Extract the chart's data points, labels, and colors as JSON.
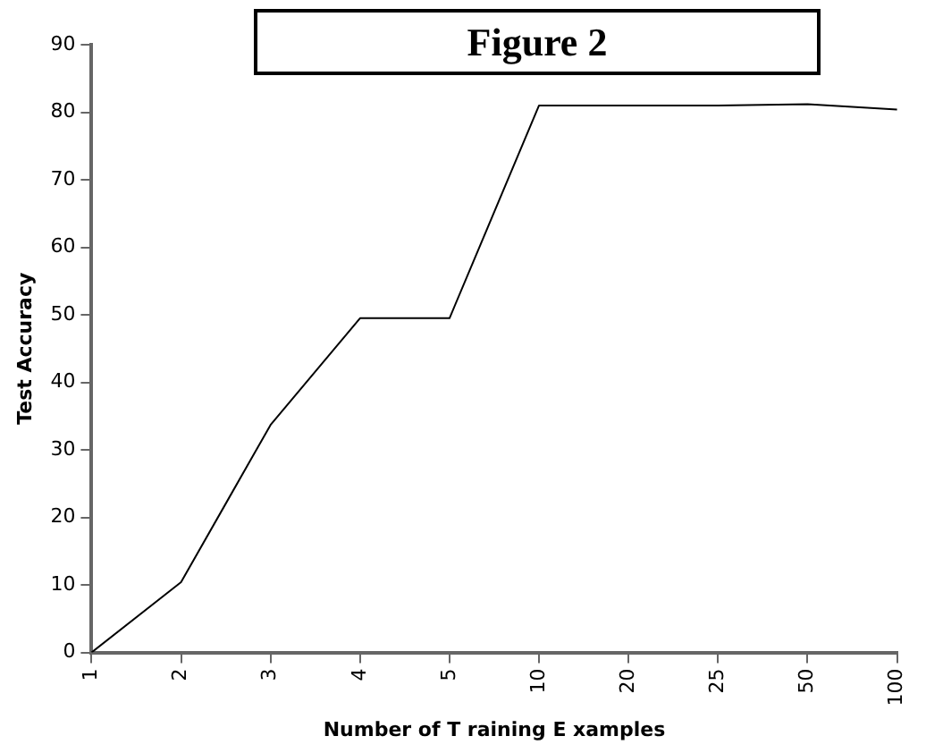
{
  "chart_data": {
    "type": "line",
    "title": "Figure 2",
    "xlabel": "Number of T raining E xamples",
    "ylabel": "Test Accuracy",
    "categories": [
      "1",
      "2",
      "3",
      "4",
      "5",
      "10",
      "20",
      "25",
      "50",
      "100"
    ],
    "series": [
      {
        "color": "#000000",
        "values": [
          0,
          10.4,
          33.7,
          49.5,
          49.5,
          81,
          81,
          81,
          81.2,
          80.4
        ]
      }
    ],
    "ylim": [
      0,
      90
    ],
    "yticks": [
      0,
      10,
      20,
      30,
      40,
      50,
      60,
      70,
      80,
      90
    ],
    "grid": false,
    "legend": false,
    "marker": "none",
    "line_style": "solid"
  }
}
